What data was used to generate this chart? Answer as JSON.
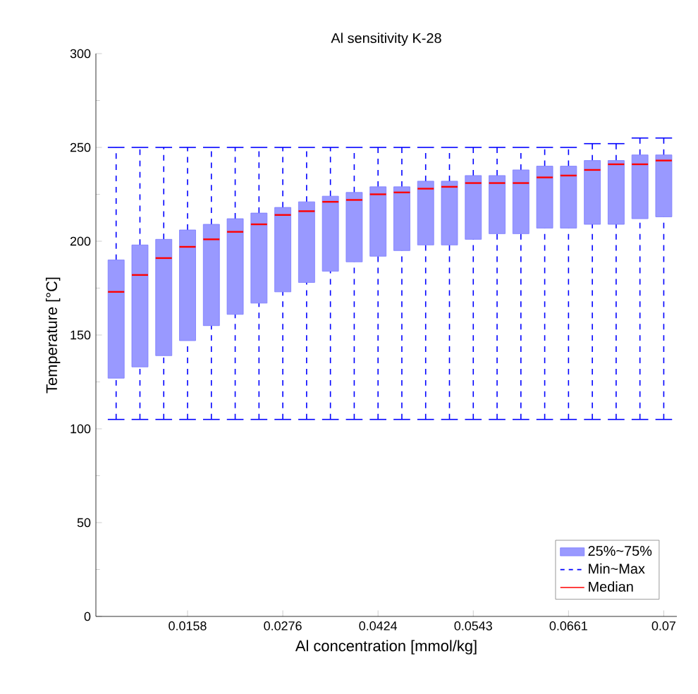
{
  "chart_data": {
    "type": "box",
    "title": "Al sensitivity K-28",
    "xlabel": "Al concentration [mmol/kg]",
    "ylabel": "Temperature [°C]",
    "categories": [
      null,
      null,
      null,
      "0.0158",
      null,
      null,
      null,
      "0.0276",
      null,
      null,
      null,
      "0.0424",
      null,
      null,
      null,
      "0.0543",
      null,
      null,
      null,
      "0.0661",
      null,
      null,
      null,
      "0.07"
    ],
    "ylim": [
      0,
      300
    ],
    "yticks": [
      0,
      50,
      100,
      150,
      200,
      250,
      300
    ],
    "legend": "bottom right",
    "grid": false,
    "annotations": [
      "Min~Max",
      "Median"
    ],
    "series": [
      {
        "name": "25%~75%",
        "color": "#9999ff",
        "boxes": [
          {
            "low": 105,
            "q1": 127,
            "median": 173,
            "q3": 190,
            "high": 250
          },
          {
            "low": 105,
            "q1": 133,
            "median": 182,
            "q3": 198,
            "high": 250
          },
          {
            "low": 105,
            "q1": 139,
            "median": 191,
            "q3": 201,
            "high": 250
          },
          {
            "low": 105,
            "q1": 147,
            "median": 197,
            "q3": 206,
            "high": 250
          },
          {
            "low": 105,
            "q1": 155,
            "median": 201,
            "q3": 209,
            "high": 250
          },
          {
            "low": 105,
            "q1": 161,
            "median": 205,
            "q3": 212,
            "high": 250
          },
          {
            "low": 105,
            "q1": 167,
            "median": 209,
            "q3": 215,
            "high": 250
          },
          {
            "low": 105,
            "q1": 173,
            "median": 214,
            "q3": 218,
            "high": 250
          },
          {
            "low": 105,
            "q1": 178,
            "median": 216,
            "q3": 221,
            "high": 250
          },
          {
            "low": 105,
            "q1": 184,
            "median": 221,
            "q3": 224,
            "high": 250
          },
          {
            "low": 105,
            "q1": 189,
            "median": 222,
            "q3": 226,
            "high": 250
          },
          {
            "low": 105,
            "q1": 192,
            "median": 225,
            "q3": 229,
            "high": 250
          },
          {
            "low": 105,
            "q1": 195,
            "median": 226,
            "q3": 229,
            "high": 250
          },
          {
            "low": 105,
            "q1": 198,
            "median": 228,
            "q3": 232,
            "high": 250
          },
          {
            "low": 105,
            "q1": 198,
            "median": 229,
            "q3": 232,
            "high": 250
          },
          {
            "low": 105,
            "q1": 201,
            "median": 231,
            "q3": 235,
            "high": 250
          },
          {
            "low": 105,
            "q1": 204,
            "median": 231,
            "q3": 235,
            "high": 250
          },
          {
            "low": 105,
            "q1": 204,
            "median": 231,
            "q3": 238,
            "high": 250
          },
          {
            "low": 105,
            "q1": 207,
            "median": 234,
            "q3": 240,
            "high": 250
          },
          {
            "low": 105,
            "q1": 207,
            "median": 235,
            "q3": 240,
            "high": 250
          },
          {
            "low": 105,
            "q1": 209,
            "median": 238,
            "q3": 243,
            "high": 252
          },
          {
            "low": 105,
            "q1": 209,
            "median": 241,
            "q3": 243,
            "high": 252
          },
          {
            "low": 105,
            "q1": 212,
            "median": 241,
            "q3": 246,
            "high": 255
          },
          {
            "low": 105,
            "q1": 213,
            "median": 243,
            "q3": 246,
            "high": 255
          }
        ]
      }
    ]
  }
}
